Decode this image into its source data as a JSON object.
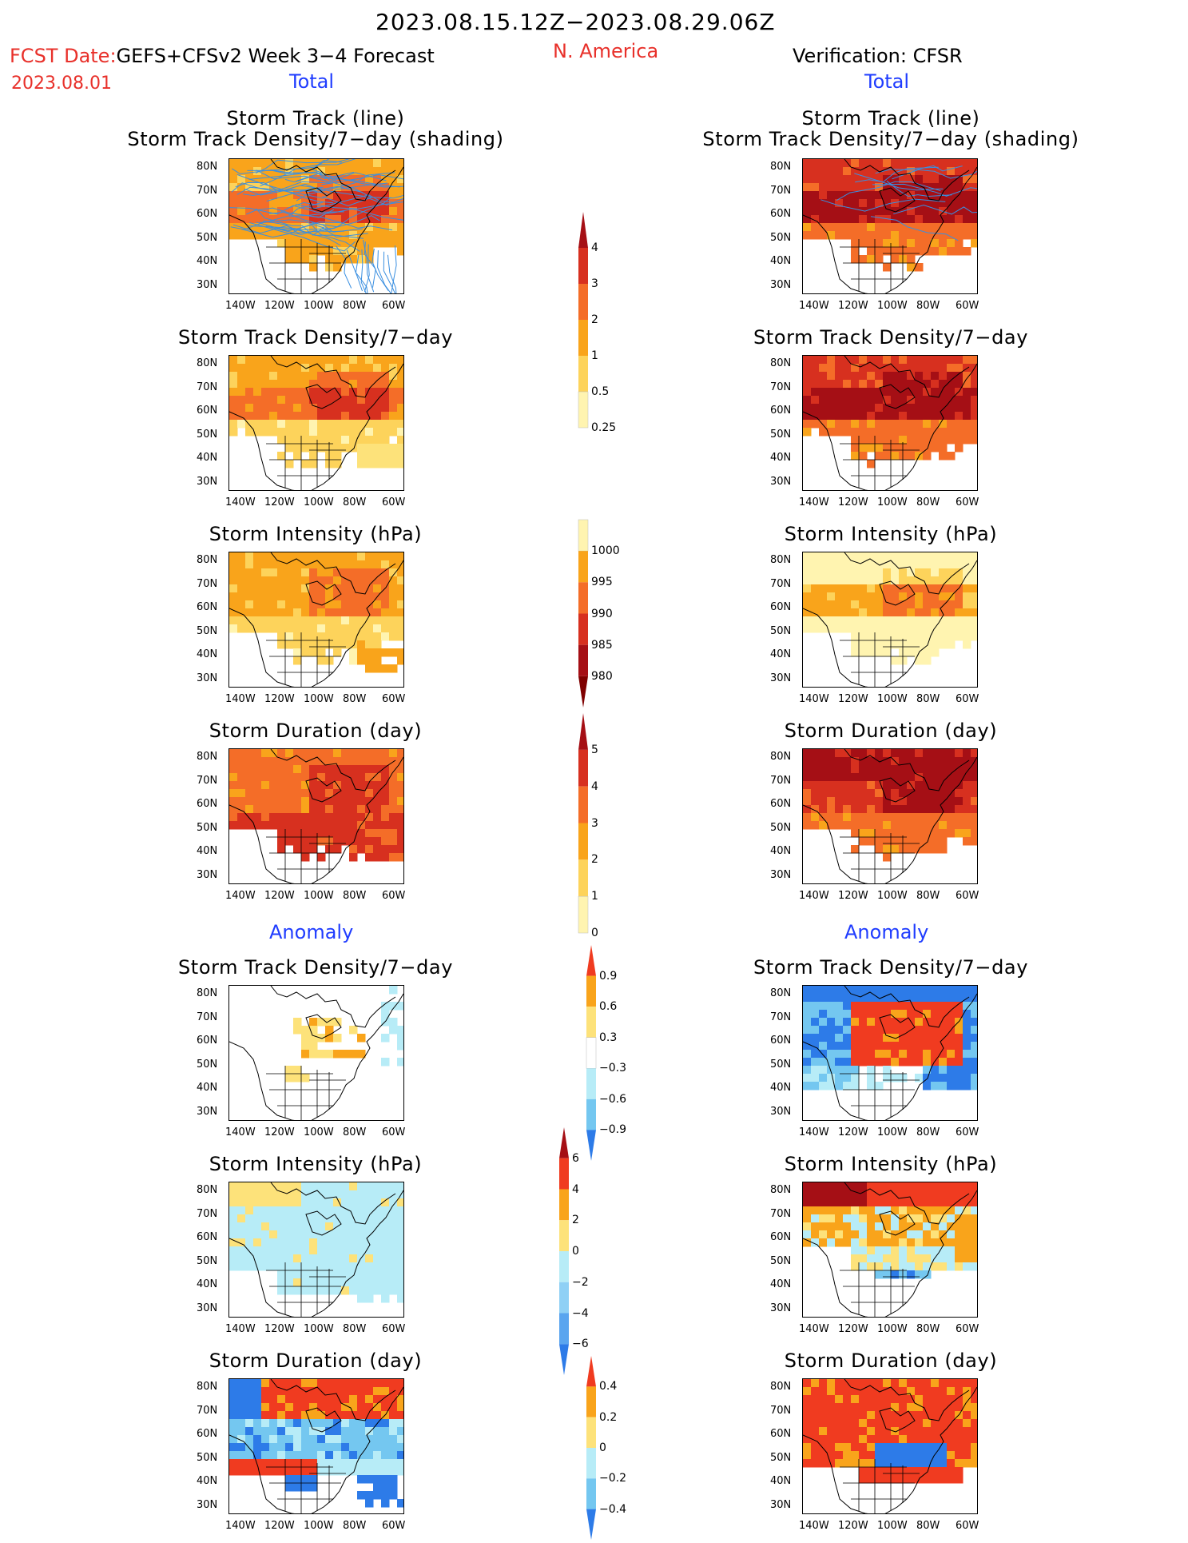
{
  "header": {
    "date_range": "2023.08.15.12Z−2023.08.29.06Z",
    "fcst_date_label": "FCST Date:",
    "forecast_label": "GEFS+CFSv2 Week 3−4 Forecast",
    "init_date": "2023.08.01",
    "region": "N. America",
    "verification_label": "Verification: CFSR",
    "total_left": "Total",
    "total_right": "Total",
    "anomaly_left": "Anomaly",
    "anomaly_right": "Anomaly"
  },
  "panel_titles": {
    "track_line": "Storm Track (line)",
    "track_density_shading": "Storm Track Density/7−day (shading)",
    "track_density": "Storm Track Density/7−day",
    "intensity": "Storm Intensity (hPa)",
    "duration": "Storm Duration (day)"
  },
  "axes": {
    "lat_ticks": [
      "80N",
      "70N",
      "60N",
      "50N",
      "40N",
      "30N"
    ],
    "lon_ticks": [
      "140W",
      "120W",
      "100W",
      "80W",
      "60W"
    ]
  },
  "colorbars": {
    "density_total": {
      "labels": [
        "4",
        "3",
        "2",
        "1",
        "0.5",
        "0.25"
      ],
      "colors": [
        "#a50f15",
        "#d7301f",
        "#f46d28",
        "#f9a41b",
        "#fdd35b",
        "#fff4b0"
      ]
    },
    "intensity_total": {
      "labels": [
        "1000",
        "995",
        "990",
        "985",
        "980"
      ],
      "colors": [
        "#fff4b0",
        "#f9a41b",
        "#f46d28",
        "#d7301f",
        "#a50f15",
        "#7f0000"
      ]
    },
    "duration_total": {
      "labels": [
        "5",
        "4",
        "3",
        "2",
        "1",
        "0"
      ],
      "colors": [
        "#a50f15",
        "#d7301f",
        "#f46d28",
        "#f9a41b",
        "#fdd35b",
        "#fff4b0"
      ]
    },
    "density_anom": {
      "labels": [
        "0.9",
        "0.6",
        "0.3",
        "−0.3",
        "−0.6",
        "−0.9"
      ],
      "colors": [
        "#f03b20",
        "#f9a41b",
        "#fde27a",
        "#ffffff",
        "#b7ecf7",
        "#74c7f0",
        "#2d7be8"
      ]
    },
    "intensity_anom": {
      "labels": [
        "6",
        "4",
        "2",
        "0",
        "−2",
        "−4",
        "−6"
      ],
      "colors": [
        "#a50f15",
        "#f03b20",
        "#f9a41b",
        "#fde27a",
        "#b7ecf7",
        "#8fd0f5",
        "#5aa5ef",
        "#2d7be8"
      ]
    },
    "duration_anom": {
      "labels": [
        "0.4",
        "0.2",
        "0",
        "−0.2",
        "−0.4"
      ],
      "colors": [
        "#f03b20",
        "#f9a41b",
        "#fde27a",
        "#b7ecf7",
        "#74c7f0",
        "#2d7be8"
      ]
    }
  },
  "palette": {
    "track_line": "#3a8fe0",
    "coast": "#000000"
  }
}
